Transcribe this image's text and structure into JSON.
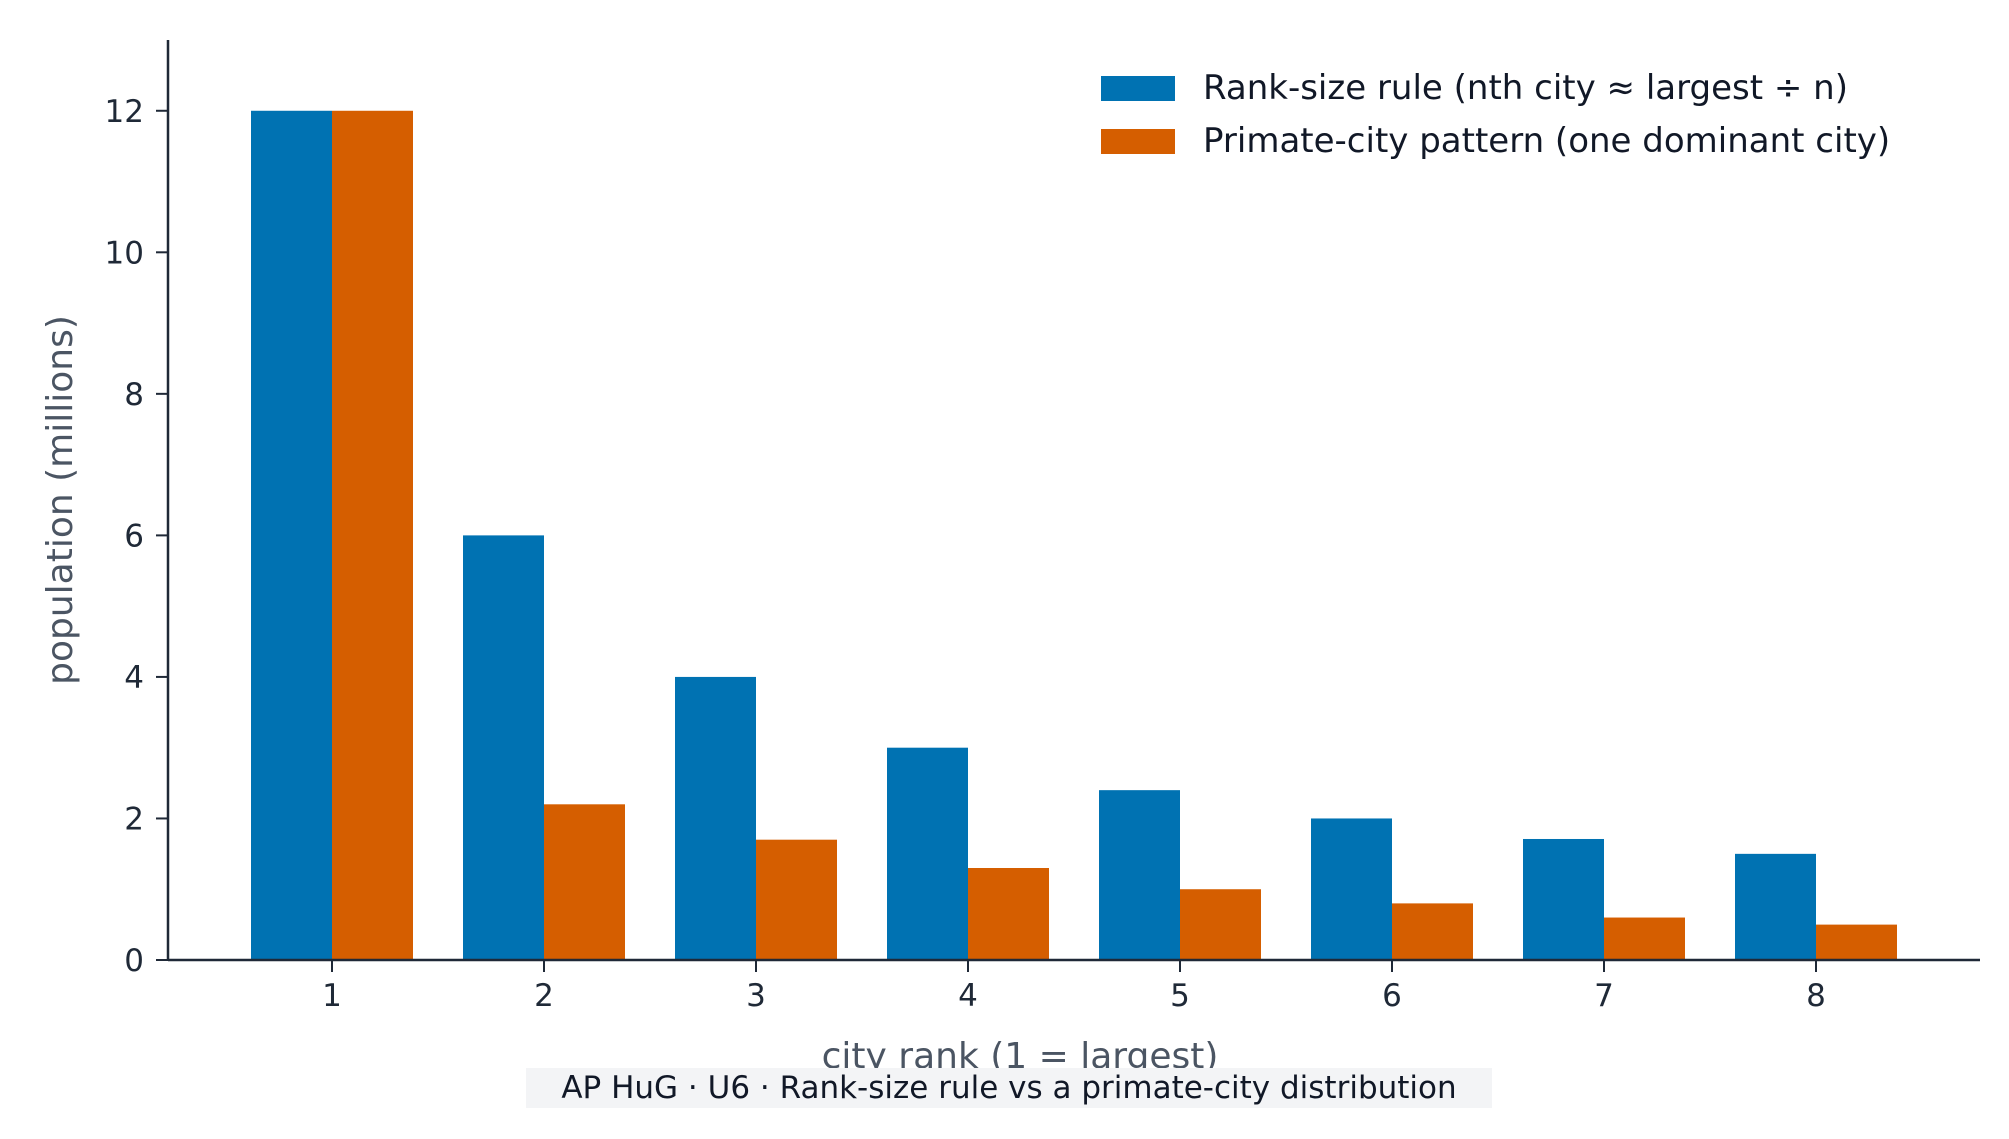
{
  "caption": "AP HuG · U6 · Rank-size rule vs a primate-city distribution",
  "colors": {
    "rank_size": "#0072b2",
    "primate": "#d55e00",
    "axis": "#1f2937"
  },
  "chart_data": {
    "type": "bar",
    "xlabel": "city rank (1 = largest)",
    "ylabel": "population (millions)",
    "ylim": [
      0,
      13
    ],
    "yticks": [
      0,
      2,
      4,
      6,
      8,
      10,
      12
    ],
    "categories": [
      "1",
      "2",
      "3",
      "4",
      "5",
      "6",
      "7",
      "8"
    ],
    "legend_position": "top-right",
    "grid": false,
    "series": [
      {
        "name": "Rank-size rule  (nth city ≈ largest ÷ n)",
        "color": "#0072b2",
        "values": [
          12,
          6,
          4,
          3,
          2.4,
          2,
          1.71,
          1.5
        ]
      },
      {
        "name": "Primate-city pattern  (one dominant city)",
        "color": "#d55e00",
        "values": [
          12,
          2.2,
          1.7,
          1.3,
          1.0,
          0.8,
          0.6,
          0.5
        ]
      }
    ]
  }
}
